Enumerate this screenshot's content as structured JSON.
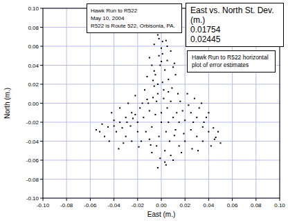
{
  "chart_data": {
    "type": "scatter",
    "x_label": "East (m.)",
    "y_label": "North (m.)",
    "annotations": [
      [
        "Hawk Run to R522",
        "May 10, 2004",
        "R522 is Route 522, Orbisonia, PA."
      ],
      [
        "East vs. North St. Dev. (m.)",
        "0.01754",
        "0.02445"
      ],
      [
        "Hawk Run to R522 horizontal plot of error estimates"
      ]
    ],
    "color": "#000000",
    "marker": "square",
    "grid": true,
    "xlim": [
      -0.1,
      0.1
    ],
    "ylim": [
      -0.1,
      0.1
    ],
    "xticks": [
      {
        "value": -0.1,
        "label": "-0.10"
      },
      {
        "value": -0.08,
        "label": "-0.08"
      },
      {
        "value": -0.06,
        "label": "-0.06"
      },
      {
        "value": -0.04,
        "label": "-0.04"
      },
      {
        "value": -0.02,
        "label": "-0.02"
      },
      {
        "value": 0,
        "label": "0.00"
      },
      {
        "value": 0.02,
        "label": "0.02"
      },
      {
        "value": 0.04,
        "label": "0.04"
      },
      {
        "value": 0.06,
        "label": "0.06"
      },
      {
        "value": 0.08,
        "label": "0.08"
      },
      {
        "value": 0.1,
        "label": "0.10"
      }
    ],
    "yticks": [
      {
        "value": -0.1,
        "label": "-0.10"
      },
      {
        "value": -0.08,
        "label": "-0.08"
      },
      {
        "value": -0.06,
        "label": "-0.06"
      },
      {
        "value": -0.04,
        "label": "-0.04"
      },
      {
        "value": -0.02,
        "label": "-0.02"
      },
      {
        "value": 0,
        "label": "0.00"
      },
      {
        "value": 0.02,
        "label": "0.02"
      },
      {
        "value": 0.04,
        "label": "0.04"
      },
      {
        "value": 0.06,
        "label": "0.06"
      },
      {
        "value": 0.08,
        "label": "0.08"
      },
      {
        "value": 0.1,
        "label": "0.10"
      }
    ],
    "x": [
      0.0,
      0.005,
      -0.005,
      0.01,
      -0.01,
      0.002,
      -0.003,
      0.008,
      -0.015,
      0.015,
      -0.008,
      0.004,
      -0.002,
      0.012,
      -0.018,
      0.018,
      -0.012,
      0.006,
      -0.006,
      0.001,
      0.014,
      -0.02,
      0.02,
      -0.004,
      0.007,
      -0.01,
      0.003,
      -0.001,
      0.004,
      -0.003,
      0.008,
      -0.008,
      -0.005,
      0.003,
      -0.008,
      0.005,
      -0.002,
      0.0,
      -0.006,
      0.004,
      -0.003,
      0.002,
      0.008,
      -0.01,
      0.01,
      -0.012,
      0.012,
      0.006,
      -0.001,
      0.001,
      -0.025,
      -0.03,
      -0.035,
      -0.04,
      -0.045,
      -0.05,
      -0.055,
      -0.038,
      -0.03,
      -0.025,
      -0.042,
      -0.035,
      -0.028,
      -0.022,
      -0.032,
      -0.048,
      -0.02,
      -0.026,
      -0.044,
      -0.036,
      0.025,
      0.03,
      0.035,
      0.04,
      0.045,
      0.05,
      0.048,
      0.038,
      0.032,
      0.028,
      0.022,
      0.042,
      0.03,
      0.025,
      0.035,
      0.02,
      0.026,
      0.015,
      0.04,
      0.034,
      -0.016,
      0.016,
      -0.022,
      0.023,
      0.011,
      -0.013,
      0.009,
      -0.007,
      0.0,
      -0.017,
      0.019,
      0.002,
      -0.024,
      0.027,
      -0.014,
      0.013,
      -0.004,
      0.006,
      -0.009,
      0.01,
      -0.033,
      0.036,
      -0.04,
      0.044,
      -0.019,
      0.017,
      0.001,
      -0.002,
      0.005,
      -0.006,
      -0.052,
      0.046,
      -0.029,
      0.031,
      -0.011,
      0.011,
      -0.003,
      0.003,
      0.0,
      -0.007
    ],
    "values": [
      -0.01,
      -0.005,
      -0.012,
      -0.015,
      -0.008,
      0.005,
      0.01,
      0.002,
      -0.015,
      -0.02,
      -0.025,
      -0.03,
      -0.035,
      -0.028,
      -0.005,
      -0.008,
      0.004,
      0.012,
      0.018,
      0.022,
      0.01,
      -0.02,
      -0.018,
      -0.045,
      -0.04,
      -0.038,
      -0.05,
      -0.058,
      -0.065,
      -0.068,
      -0.055,
      -0.052,
      0.03,
      0.035,
      0.04,
      0.045,
      0.05,
      0.058,
      0.062,
      0.066,
      0.072,
      0.075,
      0.055,
      0.048,
      0.038,
      0.028,
      0.03,
      0.025,
      0.04,
      0.065,
      -0.01,
      -0.015,
      -0.02,
      -0.018,
      -0.025,
      -0.022,
      -0.028,
      -0.03,
      -0.035,
      -0.04,
      -0.01,
      -0.005,
      0.0,
      0.008,
      -0.042,
      -0.035,
      -0.03,
      -0.024,
      -0.04,
      -0.048,
      -0.01,
      -0.015,
      -0.025,
      -0.03,
      -0.038,
      -0.042,
      -0.03,
      -0.015,
      -0.005,
      0.005,
      0.01,
      -0.045,
      -0.035,
      -0.028,
      -0.04,
      -0.04,
      -0.048,
      -0.045,
      -0.01,
      0.0,
      0.0,
      0.002,
      -0.012,
      -0.002,
      -0.034,
      -0.03,
      0.016,
      0.006,
      -0.02,
      -0.04,
      -0.032,
      0.014,
      -0.016,
      -0.02,
      0.014,
      -0.01,
      0.002,
      -0.02,
      -0.044,
      -0.06,
      -0.026,
      -0.02,
      -0.024,
      -0.026,
      -0.046,
      -0.052,
      0.052,
      0.068,
      0.06,
      0.034,
      -0.03,
      -0.036,
      -0.02,
      -0.05,
      0.0,
      0.042,
      0.02,
      -0.062,
      0.044,
      0.024
    ]
  }
}
